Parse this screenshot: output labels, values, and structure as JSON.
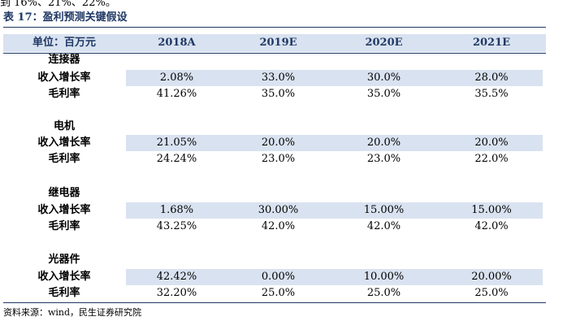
{
  "top_fragment": "到 16%、21%、22%。",
  "title": "表 17：盈利预测关键假设",
  "header": {
    "unit": "单位：百万元",
    "years": [
      "2018A",
      "2019E",
      "2020E",
      "2021E"
    ]
  },
  "groups": [
    {
      "name": "连接器",
      "rows": [
        {
          "label": "收入增长率",
          "values": [
            "2.08%",
            "33.0%",
            "30.0%",
            "28.0%"
          ]
        },
        {
          "label": "毛利率",
          "values": [
            "41.26%",
            "35.0%",
            "35.0%",
            "35.5%"
          ]
        }
      ]
    },
    {
      "name": "电机",
      "rows": [
        {
          "label": "收入增长率",
          "values": [
            "21.05%",
            "20.0%",
            "20.0%",
            "20.0%"
          ]
        },
        {
          "label": "毛利率",
          "values": [
            "24.24%",
            "23.0%",
            "23.0%",
            "22.0%"
          ]
        }
      ]
    },
    {
      "name": "继电器",
      "rows": [
        {
          "label": "收入增长率",
          "values": [
            "1.68%",
            "30.00%",
            "15.00%",
            "15.00%"
          ]
        },
        {
          "label": "毛利率",
          "values": [
            "43.25%",
            "42.0%",
            "42.0%",
            "42.0%"
          ]
        }
      ]
    },
    {
      "name": "光器件",
      "rows": [
        {
          "label": "收入增长率",
          "values": [
            "42.42%",
            "0.00%",
            "10.00%",
            "20.00%"
          ]
        },
        {
          "label": "毛利率",
          "values": [
            "32.20%",
            "25.0%",
            "25.0%",
            "25.0%"
          ]
        }
      ]
    }
  ],
  "source": "资料来源：wind，民生证券研究院",
  "colors": {
    "accent": "#1f3864",
    "band": "#d9e2f0"
  }
}
